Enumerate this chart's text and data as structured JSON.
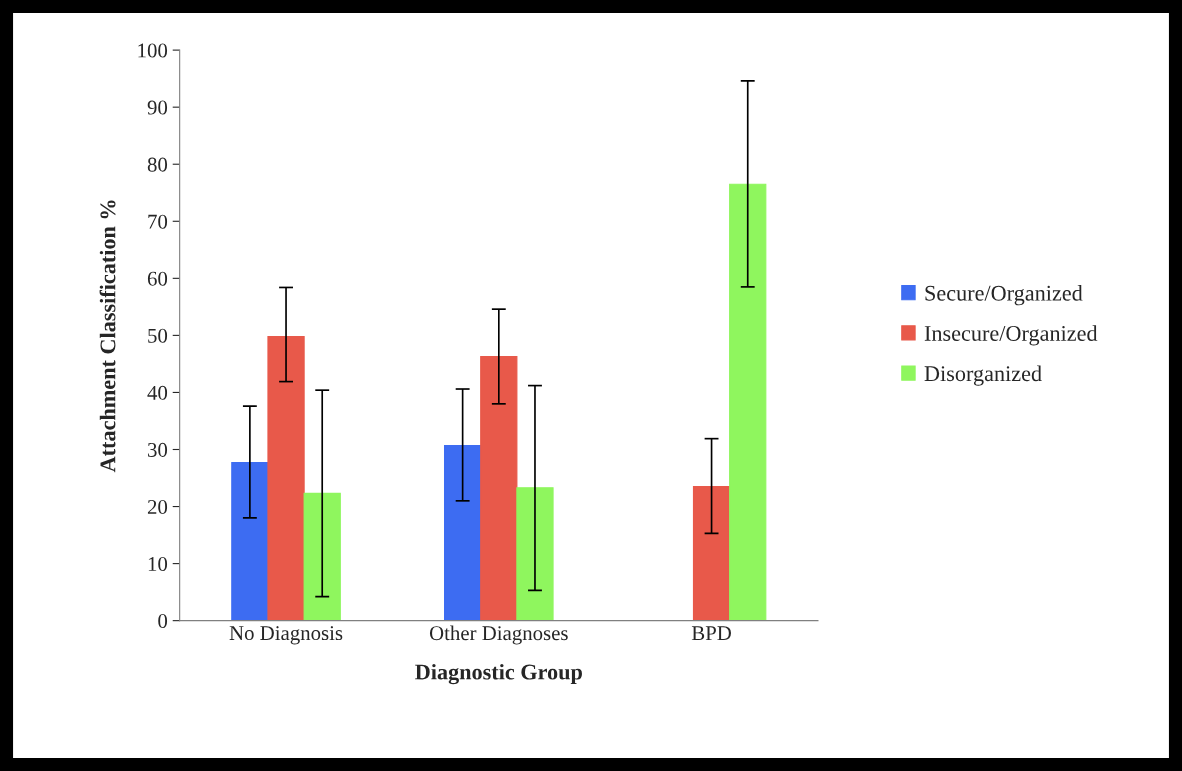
{
  "chart_data": {
    "type": "bar",
    "xlabel": "Diagnostic Group",
    "ylabel": "Attachment Classification %",
    "categories": [
      "No Diagnosis",
      "Other Diagnoses",
      "BPD"
    ],
    "series": [
      {
        "name": "Secure/Organized",
        "color": "#3d6cf2",
        "values": [
          27.7,
          30.7,
          0
        ],
        "errors": [
          [
            18.0,
            37.6
          ],
          [
            21.0,
            40.6
          ],
          null
        ]
      },
      {
        "name": "Insecure/Organized",
        "color": "#e8594a",
        "values": [
          49.8,
          46.3,
          23.5
        ],
        "errors": [
          [
            41.9,
            58.4
          ],
          [
            38.0,
            54.6
          ],
          [
            15.3,
            31.9
          ]
        ]
      },
      {
        "name": "Disorganized",
        "color": "#8ff65e",
        "values": [
          22.3,
          23.3,
          76.5
        ],
        "errors": [
          [
            4.2,
            40.4
          ],
          [
            5.3,
            41.2
          ],
          [
            58.5,
            94.6
          ]
        ]
      }
    ],
    "ylim": [
      0,
      100
    ],
    "yticks": [
      0,
      10,
      20,
      30,
      40,
      50,
      60,
      70,
      80,
      90,
      100
    ],
    "grid": false,
    "legend": "right"
  }
}
